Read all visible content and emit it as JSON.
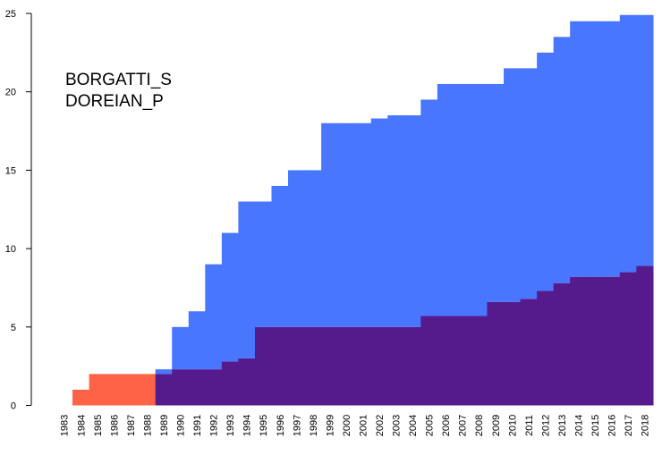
{
  "chart_data": {
    "type": "area",
    "x": [
      1983,
      1984,
      1985,
      1986,
      1987,
      1988,
      1989,
      1990,
      1991,
      1992,
      1993,
      1994,
      1995,
      1996,
      1997,
      1998,
      1999,
      2000,
      2001,
      2002,
      2003,
      2004,
      2005,
      2006,
      2007,
      2008,
      2009,
      2010,
      2011,
      2012,
      2013,
      2014,
      2015,
      2016,
      2017,
      2018
    ],
    "series": [
      {
        "name": "BORGATTI_S",
        "color": "#4876FF",
        "values": [
          0,
          0,
          0,
          0,
          0,
          0,
          2.3,
          5,
          6,
          9,
          11,
          13,
          13,
          14,
          15,
          15,
          18,
          18,
          18,
          18.3,
          18.5,
          18.5,
          19.5,
          20.5,
          20.5,
          20.5,
          20.5,
          21.5,
          21.5,
          22.5,
          23.5,
          24.5,
          24.5,
          24.5,
          24.9,
          24.9
        ]
      },
      {
        "name": "DOREIAN_P",
        "color": "#FF6347",
        "values": [
          0,
          1,
          2,
          2,
          2,
          2,
          2,
          2.3,
          2.3,
          2.3,
          2.8,
          3,
          5,
          5,
          5,
          5,
          5,
          5,
          5,
          5,
          5,
          5,
          5.7,
          5.7,
          5.7,
          5.7,
          6.6,
          6.6,
          6.8,
          7.3,
          7.8,
          8.2,
          8.2,
          8.2,
          8.5,
          8.9
        ]
      }
    ],
    "overlap_color": "#551A8B",
    "ylim": [
      0,
      25
    ],
    "yticks": [
      0,
      5,
      10,
      15,
      20,
      25
    ],
    "title": "",
    "xlabel": "",
    "ylabel": "",
    "grid": false,
    "legend_placement": "top-left"
  }
}
